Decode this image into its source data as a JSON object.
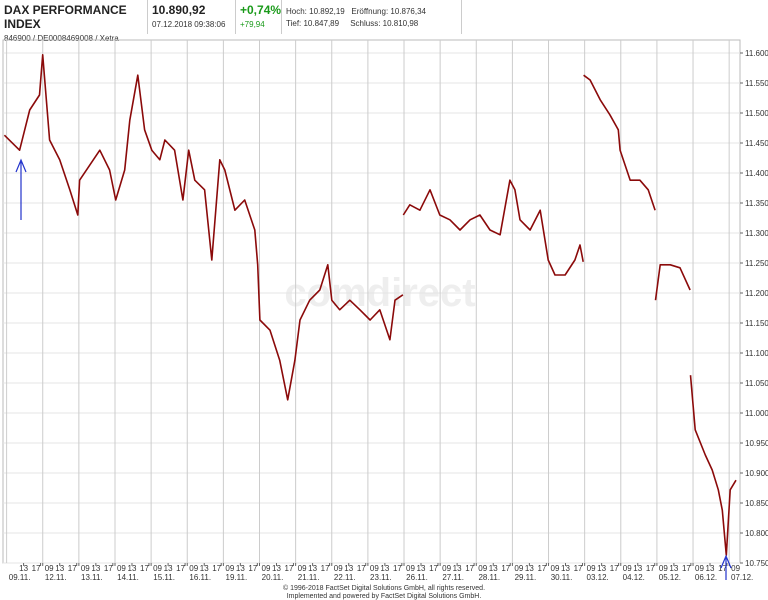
{
  "header": {
    "title": "DAX PERFORMANCE INDEX",
    "subtitle": "846900 / DE0008469008 / Xetra",
    "price": "10.890,92",
    "timestamp": "07.12.2018 09:38:06",
    "change_pct": "+0,74%",
    "change_abs": "+79,94",
    "high": "Hoch: 10.892,19",
    "open": "Eröffnung: 10.876,34",
    "low": "Tief: 10.847,89",
    "close": "Schluss: 10.810,98"
  },
  "watermark": "comdirect",
  "footer": [
    "© 1996-2018 FactSet Digital Solutions GmbH, all rights reserved.",
    "Implemented and powered by FactSet Digital Solutions GmbH."
  ],
  "chart_data": {
    "type": "line",
    "grid": true,
    "xlim": [
      -0.1,
      20.3
    ],
    "ylim": [
      10.75,
      11.6
    ],
    "yticks": [
      {
        "value": 11.6,
        "label": "11.600"
      },
      {
        "value": 11.55,
        "label": "11.550"
      },
      {
        "value": 11.5,
        "label": "11.500"
      },
      {
        "value": 11.45,
        "label": "11.450"
      },
      {
        "value": 11.4,
        "label": "11.400"
      },
      {
        "value": 11.35,
        "label": "11.350"
      },
      {
        "value": 11.3,
        "label": "11.300"
      },
      {
        "value": 11.25,
        "label": "11.250"
      },
      {
        "value": 11.2,
        "label": "11.200"
      },
      {
        "value": 11.15,
        "label": "11.150"
      },
      {
        "value": 11.1,
        "label": "11.100"
      },
      {
        "value": 11.05,
        "label": "11.050"
      },
      {
        "value": 11.0,
        "label": "11.000"
      },
      {
        "value": 10.95,
        "label": "10.950"
      },
      {
        "value": 10.9,
        "label": "10.900"
      },
      {
        "value": 10.85,
        "label": "10.850"
      },
      {
        "value": 10.8,
        "label": "10.800"
      },
      {
        "value": 10.75,
        "label": "10.750"
      }
    ],
    "hour_ticks": [
      {
        "value": 0.47,
        "label": "13"
      },
      {
        "value": 0.94,
        "label": "17"
      },
      {
        "value": 1,
        "label": "09"
      },
      {
        "value": 1.47,
        "label": "13"
      },
      {
        "value": 1.94,
        "label": "17"
      },
      {
        "value": 2,
        "label": "09"
      },
      {
        "value": 2.47,
        "label": "13"
      },
      {
        "value": 2.94,
        "label": "17"
      },
      {
        "value": 3,
        "label": "09"
      },
      {
        "value": 3.47,
        "label": "13"
      },
      {
        "value": 3.94,
        "label": "17"
      },
      {
        "value": 4,
        "label": "09"
      },
      {
        "value": 4.47,
        "label": "13"
      },
      {
        "value": 4.94,
        "label": "17"
      },
      {
        "value": 5,
        "label": "09"
      },
      {
        "value": 5.47,
        "label": "13"
      },
      {
        "value": 5.94,
        "label": "17"
      },
      {
        "value": 6,
        "label": "09"
      },
      {
        "value": 6.47,
        "label": "13"
      },
      {
        "value": 6.94,
        "label": "17"
      },
      {
        "value": 7,
        "label": "09"
      },
      {
        "value": 7.47,
        "label": "13"
      },
      {
        "value": 7.94,
        "label": "17"
      },
      {
        "value": 8,
        "label": "09"
      },
      {
        "value": 8.47,
        "label": "13"
      },
      {
        "value": 8.94,
        "label": "17"
      },
      {
        "value": 9,
        "label": "09"
      },
      {
        "value": 9.47,
        "label": "13"
      },
      {
        "value": 9.94,
        "label": "17"
      },
      {
        "value": 10,
        "label": "09"
      },
      {
        "value": 10.47,
        "label": "13"
      },
      {
        "value": 10.94,
        "label": "17"
      },
      {
        "value": 11,
        "label": "09"
      },
      {
        "value": 11.47,
        "label": "13"
      },
      {
        "value": 11.94,
        "label": "17"
      },
      {
        "value": 12,
        "label": "09"
      },
      {
        "value": 12.47,
        "label": "13"
      },
      {
        "value": 12.94,
        "label": "17"
      },
      {
        "value": 13,
        "label": "09"
      },
      {
        "value": 13.47,
        "label": "13"
      },
      {
        "value": 13.94,
        "label": "17"
      },
      {
        "value": 14,
        "label": "09"
      },
      {
        "value": 14.47,
        "label": "13"
      },
      {
        "value": 14.94,
        "label": "17"
      },
      {
        "value": 15,
        "label": "09"
      },
      {
        "value": 15.47,
        "label": "13"
      },
      {
        "value": 15.94,
        "label": "17"
      },
      {
        "value": 16,
        "label": "09"
      },
      {
        "value": 16.47,
        "label": "13"
      },
      {
        "value": 16.94,
        "label": "17"
      },
      {
        "value": 17,
        "label": "09"
      },
      {
        "value": 17.47,
        "label": "13"
      },
      {
        "value": 17.94,
        "label": "17"
      },
      {
        "value": 18,
        "label": "09"
      },
      {
        "value": 18.47,
        "label": "13"
      },
      {
        "value": 18.94,
        "label": "17"
      },
      {
        "value": 19,
        "label": "09"
      },
      {
        "value": 19.47,
        "label": "13"
      },
      {
        "value": 19.94,
        "label": "17"
      },
      {
        "value": 20,
        "label": "09"
      }
    ],
    "date_ticks": [
      {
        "value": 0,
        "label": "09.11."
      },
      {
        "value": 1,
        "label": "12.11."
      },
      {
        "value": 2,
        "label": "13.11."
      },
      {
        "value": 3,
        "label": "14.11."
      },
      {
        "value": 4,
        "label": "15.11."
      },
      {
        "value": 5,
        "label": "16.11."
      },
      {
        "value": 6,
        "label": "19.11."
      },
      {
        "value": 7,
        "label": "20.11."
      },
      {
        "value": 8,
        "label": "21.11."
      },
      {
        "value": 9,
        "label": "22.11."
      },
      {
        "value": 10,
        "label": "23.11."
      },
      {
        "value": 11,
        "label": "26.11."
      },
      {
        "value": 12,
        "label": "27.11."
      },
      {
        "value": 13,
        "label": "28.11."
      },
      {
        "value": 14,
        "label": "29.11."
      },
      {
        "value": 15,
        "label": "30.11."
      },
      {
        "value": 16,
        "label": "03.12."
      },
      {
        "value": 17,
        "label": "04.12."
      },
      {
        "value": 18,
        "label": "05.12."
      },
      {
        "value": 19,
        "label": "06.12."
      },
      {
        "value": 20,
        "label": "07.12."
      }
    ],
    "series": [
      {
        "color": "#8b0a0a",
        "x": [
          -0.06,
          0.36,
          0.64,
          0.91,
          1.0,
          1.19,
          1.47,
          1.75,
          1.97,
          2.02,
          2.3,
          2.58,
          2.85,
          3.02,
          3.27,
          3.41,
          3.63,
          3.82,
          4.02,
          4.24,
          4.38,
          4.65,
          4.88,
          5.04,
          5.21,
          5.48,
          5.68,
          5.9,
          6.04,
          6.32,
          6.59,
          6.87,
          6.95,
          7.01,
          7.29,
          7.56,
          7.78,
          7.98,
          8.12,
          8.39,
          8.67,
          8.89,
          9.0,
          9.22,
          9.5,
          9.78,
          10.06,
          10.33,
          10.61,
          10.75,
          10.97,
          null,
          10.98,
          11.16,
          11.44,
          11.72,
          11.99,
          12.27,
          12.55,
          12.83,
          13.1,
          13.38,
          13.66,
          13.93,
          14.07,
          14.21,
          14.49,
          14.77,
          14.99,
          15.18,
          15.46,
          15.73,
          15.87,
          15.96,
          null,
          15.97,
          16.15,
          16.43,
          16.7,
          16.93,
          16.98,
          17.26,
          17.53,
          17.76,
          17.95,
          null,
          17.96,
          18.09,
          18.37,
          18.64,
          18.92,
          null,
          18.93,
          19.06,
          19.34,
          19.53,
          19.7,
          19.81,
          19.92,
          20.03,
          20.19
        ],
        "values": [
          11.463,
          11.438,
          11.505,
          11.53,
          11.597,
          11.455,
          11.422,
          11.372,
          11.33,
          11.388,
          11.413,
          11.438,
          11.405,
          11.355,
          11.405,
          11.488,
          11.563,
          11.472,
          11.438,
          11.422,
          11.455,
          11.438,
          11.355,
          11.438,
          11.388,
          11.372,
          11.255,
          11.422,
          11.405,
          11.338,
          11.355,
          11.305,
          11.247,
          11.155,
          11.138,
          11.088,
          11.022,
          11.088,
          11.155,
          11.188,
          11.205,
          11.247,
          11.188,
          11.172,
          11.188,
          11.172,
          11.155,
          11.172,
          11.122,
          11.188,
          11.197,
          null,
          11.33,
          11.347,
          11.338,
          11.372,
          11.33,
          11.322,
          11.305,
          11.322,
          11.33,
          11.305,
          11.297,
          11.388,
          11.372,
          11.322,
          11.305,
          11.338,
          11.255,
          11.23,
          11.23,
          11.255,
          11.28,
          11.252,
          null,
          11.563,
          11.555,
          11.522,
          11.497,
          11.472,
          11.438,
          11.388,
          11.388,
          11.372,
          11.338,
          null,
          11.188,
          11.247,
          11.247,
          11.242,
          11.205,
          null,
          11.063,
          10.972,
          10.93,
          10.905,
          10.872,
          10.838,
          10.763,
          10.872,
          10.888
        ]
      }
    ]
  }
}
